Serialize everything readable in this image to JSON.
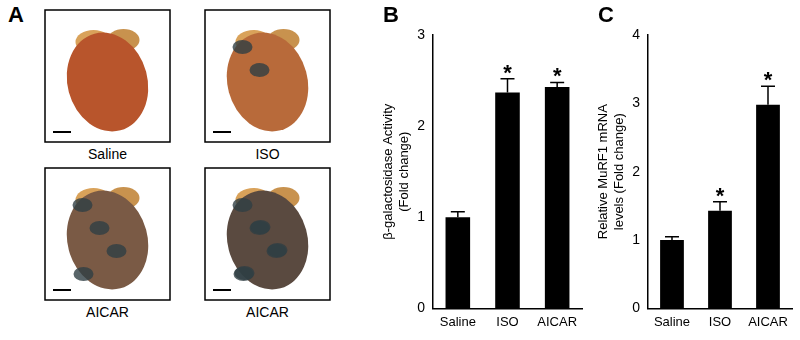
{
  "panels": [
    {
      "label": "A",
      "images": [
        "Saline",
        "ISO",
        "AICAR",
        "AICAR"
      ]
    }
  ],
  "chart_data": [
    {
      "type": "bar",
      "panel_label": "B",
      "y_label": [
        "β-galactosidase Activity",
        "(Fold change)"
      ],
      "categories": [
        "Saline",
        "ISO",
        "AICAR"
      ],
      "values": [
        1.0,
        2.37,
        2.43
      ],
      "error": [
        0.06,
        0.15,
        0.05
      ],
      "annotations": [
        {
          "category": "ISO",
          "text": "*"
        },
        {
          "category": "AICAR",
          "text": "*"
        }
      ],
      "color": "#000000",
      "ylim": [
        0,
        3
      ],
      "yticks": [
        0,
        1,
        2,
        3
      ],
      "grid": false
    },
    {
      "type": "bar",
      "panel_label": "C",
      "y_label": [
        "Relative MuRF1 mRNA",
        "levels (Fold change)"
      ],
      "categories": [
        "Saline",
        "ISO",
        "AICAR"
      ],
      "values": [
        1.0,
        1.43,
        2.98
      ],
      "error": [
        0.05,
        0.13,
        0.27
      ],
      "annotations": [
        {
          "category": "ISO",
          "text": "*"
        },
        {
          "category": "AICAR",
          "text": "*"
        }
      ],
      "color": "#000000",
      "ylim": [
        0,
        4
      ],
      "yticks": [
        0,
        1,
        2,
        3,
        4
      ],
      "grid": false
    }
  ]
}
